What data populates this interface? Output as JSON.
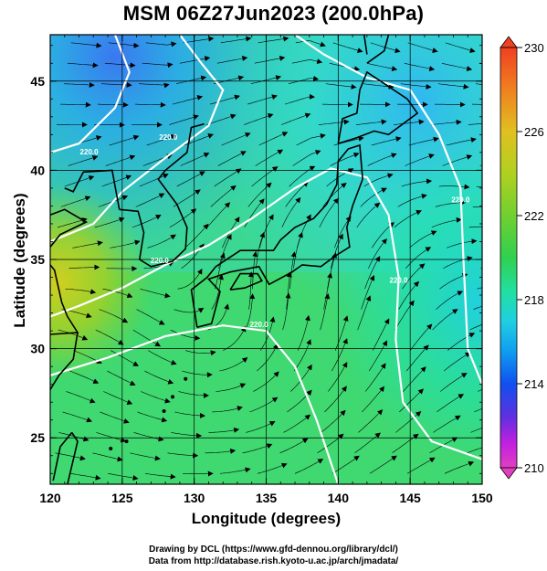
{
  "title": "MSM 06Z27Jun2023 (200.0hPa)",
  "axes": {
    "xlabel": "Longitude (degrees)",
    "ylabel": "Latitude  (degrees)",
    "x_ticks": [
      "120",
      "125",
      "130",
      "135",
      "140",
      "145",
      "150"
    ],
    "y_ticks": [
      "25",
      "30",
      "35",
      "40",
      "45"
    ],
    "xlim": [
      120,
      150
    ],
    "ylim": [
      22.4,
      47.6
    ]
  },
  "colorbar": {
    "ticks": [
      "230",
      "226",
      "222",
      "218",
      "214",
      "210"
    ],
    "range": [
      210,
      230
    ],
    "colors": [
      "#e040c0",
      "#c020e0",
      "#6030e0",
      "#1050f0",
      "#10a0f0",
      "#20d0e0",
      "#20e0a0",
      "#30d050",
      "#70d030",
      "#b0d020",
      "#e0c020",
      "#f08020",
      "#f04020"
    ]
  },
  "contour_labels": [
    {
      "text": "220.0",
      "lon": 122.7,
      "lat": 40.9
    },
    {
      "text": "220.0",
      "lon": 128.2,
      "lat": 41.7
    },
    {
      "text": "220.0",
      "lon": 127.6,
      "lat": 34.8
    },
    {
      "text": "220.0",
      "lon": 134.5,
      "lat": 31.2
    },
    {
      "text": "220.0",
      "lon": 144.2,
      "lat": 33.7
    },
    {
      "text": "220.0",
      "lon": 148.5,
      "lat": 38.2
    }
  ],
  "credits": [
    "Drawing by DCL (https://www.gfd-dennou.org/library/dcl/)",
    "Data from http://database.rish.kyoto-u.ac.jp/arch/jmadata/"
  ]
}
